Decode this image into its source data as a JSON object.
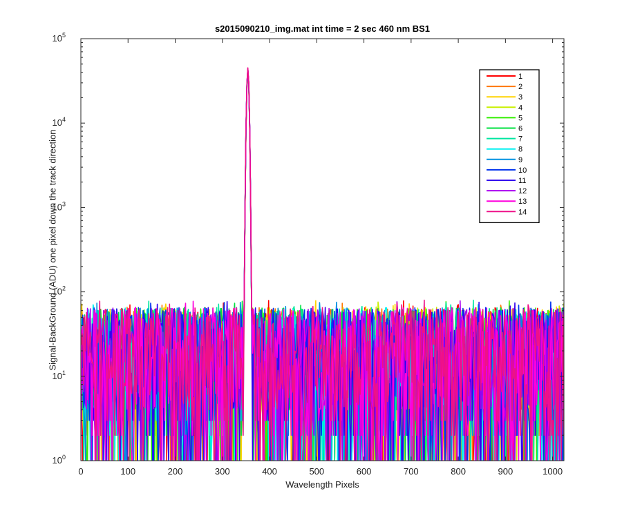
{
  "chart_data": {
    "type": "line",
    "title": "s2015090210_img.mat int time = 2 sec  460 nm BS1",
    "xlabel": "Wavelength Pixels",
    "ylabel": "Signal-BackGround (ADU) one pixel down the track direction",
    "xlim": [
      0,
      1024
    ],
    "ylim": [
      1,
      100000
    ],
    "yscale": "log",
    "grid": false,
    "legend_position": "top-right",
    "x_ticks": [
      "0",
      "100",
      "200",
      "300",
      "400",
      "500",
      "600",
      "700",
      "800",
      "900",
      "1000"
    ],
    "y_ticks": [
      {
        "base": "10",
        "exp": "0"
      },
      {
        "base": "10",
        "exp": "1"
      },
      {
        "base": "10",
        "exp": "2"
      },
      {
        "base": "10",
        "exp": "3"
      },
      {
        "base": "10",
        "exp": "4"
      },
      {
        "base": "10",
        "exp": "5"
      }
    ],
    "peak": {
      "x": 354,
      "y": 45000
    },
    "noise_range": [
      1,
      85
    ],
    "series": [
      {
        "name": "1",
        "color": "#ff0000"
      },
      {
        "name": "2",
        "color": "#ff7700"
      },
      {
        "name": "3",
        "color": "#ffd400"
      },
      {
        "name": "4",
        "color": "#c8f000"
      },
      {
        "name": "5",
        "color": "#33ee00"
      },
      {
        "name": "6",
        "color": "#00e040"
      },
      {
        "name": "7",
        "color": "#00e6a0"
      },
      {
        "name": "8",
        "color": "#00f0f0"
      },
      {
        "name": "9",
        "color": "#0090e0"
      },
      {
        "name": "10",
        "color": "#0033ee"
      },
      {
        "name": "11",
        "color": "#3300ee"
      },
      {
        "name": "12",
        "color": "#aa00f0"
      },
      {
        "name": "13",
        "color": "#ff00dd"
      },
      {
        "name": "14",
        "color": "#ee1188"
      }
    ]
  }
}
